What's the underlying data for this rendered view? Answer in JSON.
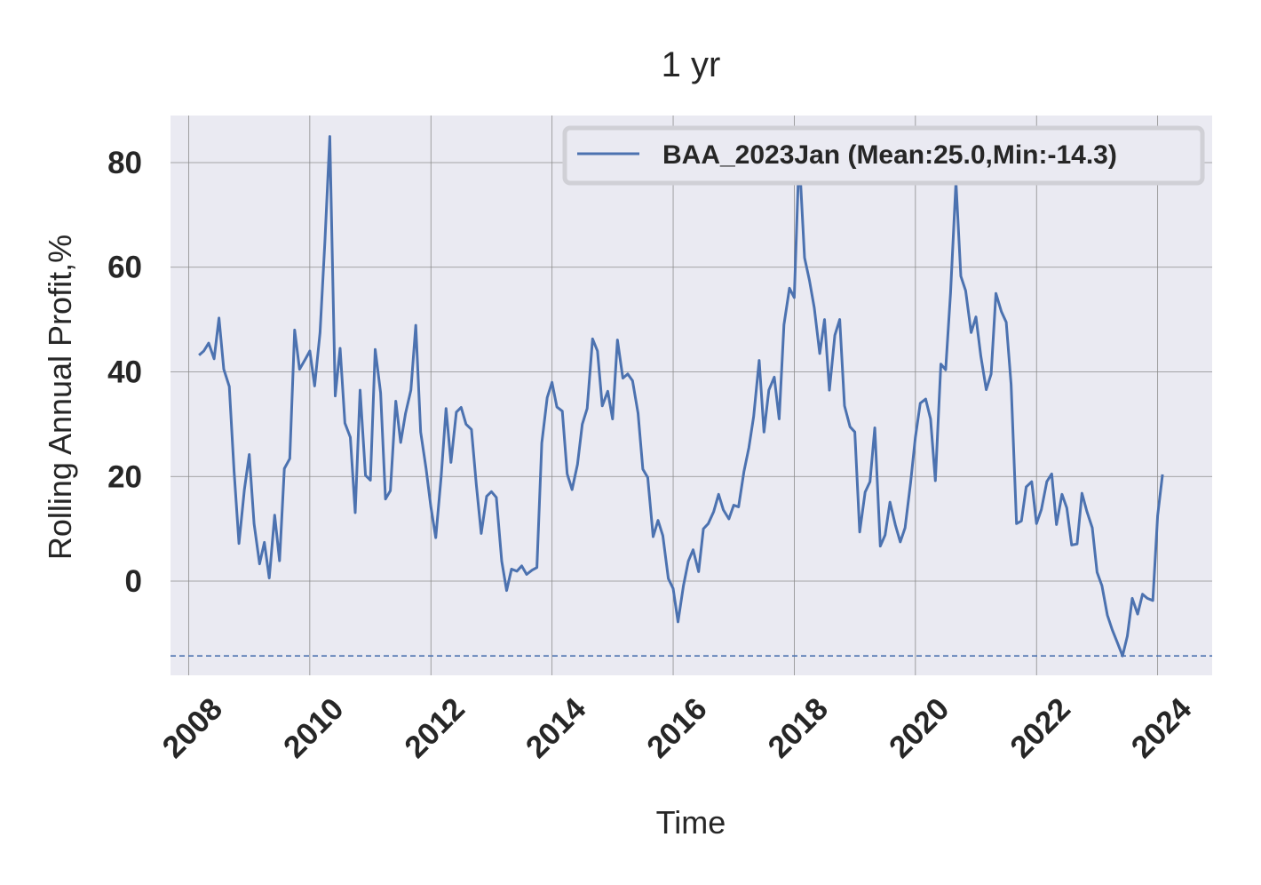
{
  "chart_data": {
    "type": "line",
    "title": "1 yr",
    "xlabel": "Time",
    "ylabel": "Rolling Annual Profit,%",
    "xlim": [
      2007.7,
      2024.9
    ],
    "ylim": [
      -18,
      89
    ],
    "x_ticks": [
      2008,
      2010,
      2012,
      2014,
      2016,
      2018,
      2020,
      2022,
      2024
    ],
    "y_ticks": [
      0,
      20,
      40,
      60,
      80
    ],
    "grid": true,
    "legend_position": "upper right",
    "colors": {
      "line": "#4c72b0",
      "plot_background": "#eaeaf2",
      "grid": "#8c8c8c",
      "text": "#262626"
    },
    "series": [
      {
        "name": "BAA_2023Jan (Mean:25.0,Min:-14.3)",
        "x": [
          2008.17,
          2008.25,
          2008.33,
          2008.42,
          2008.5,
          2008.58,
          2008.67,
          2008.75,
          2008.83,
          2008.92,
          2009.0,
          2009.08,
          2009.17,
          2009.25,
          2009.33,
          2009.42,
          2009.5,
          2009.58,
          2009.67,
          2009.75,
          2009.83,
          2009.92,
          2010.0,
          2010.08,
          2010.17,
          2010.25,
          2010.33,
          2010.42,
          2010.5,
          2010.58,
          2010.67,
          2010.75,
          2010.83,
          2010.92,
          2011.0,
          2011.08,
          2011.17,
          2011.25,
          2011.33,
          2011.42,
          2011.5,
          2011.58,
          2011.67,
          2011.75,
          2011.83,
          2011.92,
          2012.0,
          2012.08,
          2012.17,
          2012.25,
          2012.33,
          2012.42,
          2012.5,
          2012.58,
          2012.67,
          2012.75,
          2012.83,
          2012.92,
          2013.0,
          2013.08,
          2013.17,
          2013.25,
          2013.33,
          2013.42,
          2013.5,
          2013.58,
          2013.67,
          2013.75,
          2013.83,
          2013.92,
          2014.0,
          2014.08,
          2014.17,
          2014.25,
          2014.33,
          2014.42,
          2014.5,
          2014.58,
          2014.67,
          2014.75,
          2014.83,
          2014.92,
          2015.0,
          2015.08,
          2015.17,
          2015.25,
          2015.33,
          2015.42,
          2015.5,
          2015.58,
          2015.67,
          2015.75,
          2015.83,
          2015.92,
          2016.0,
          2016.08,
          2016.17,
          2016.25,
          2016.33,
          2016.42,
          2016.5,
          2016.58,
          2016.67,
          2016.75,
          2016.83,
          2016.92,
          2017.0,
          2017.08,
          2017.17,
          2017.25,
          2017.33,
          2017.42,
          2017.5,
          2017.58,
          2017.67,
          2017.75,
          2017.83,
          2017.92,
          2018.0,
          2018.08,
          2018.17,
          2018.25,
          2018.33,
          2018.42,
          2018.5,
          2018.58,
          2018.67,
          2018.75,
          2018.83,
          2018.92,
          2019.0,
          2019.08,
          2019.17,
          2019.25,
          2019.33,
          2019.42,
          2019.5,
          2019.58,
          2019.67,
          2019.75,
          2019.83,
          2019.92,
          2020.0,
          2020.08,
          2020.17,
          2020.25,
          2020.33,
          2020.42,
          2020.5,
          2020.58,
          2020.67,
          2020.75,
          2020.83,
          2020.92,
          2021.0,
          2021.08,
          2021.17,
          2021.25,
          2021.33,
          2021.42,
          2021.5,
          2021.58,
          2021.67,
          2021.75,
          2021.83,
          2021.92,
          2022.0,
          2022.08,
          2022.17,
          2022.25,
          2022.33,
          2022.42,
          2022.5,
          2022.58,
          2022.67,
          2022.75,
          2022.83,
          2022.92,
          2023.0,
          2023.08,
          2023.17,
          2023.25,
          2023.33,
          2023.42,
          2023.5,
          2023.58,
          2023.67,
          2023.75,
          2023.83,
          2023.92,
          2024.0,
          2024.08
        ],
        "y": [
          43.2,
          44.0,
          45.5,
          42.5,
          50.3,
          40.5,
          37.2,
          21.0,
          7.2,
          17.5,
          24.2,
          11.0,
          3.3,
          7.4,
          0.6,
          12.6,
          3.9,
          21.5,
          23.4,
          48.0,
          40.5,
          42.3,
          44.0,
          37.3,
          47.5,
          65.0,
          85.0,
          35.4,
          44.5,
          30.2,
          27.5,
          13.1,
          36.5,
          20.2,
          19.3,
          44.3,
          36.0,
          15.7,
          17.3,
          34.4,
          26.5,
          32.0,
          36.5,
          48.9,
          28.5,
          21.5,
          14.2,
          8.3,
          20.0,
          33.0,
          22.7,
          32.3,
          33.2,
          30.0,
          29.0,
          18.4,
          9.1,
          16.2,
          17.1,
          16.0,
          3.8,
          -1.8,
          2.3,
          1.9,
          2.9,
          1.3,
          2.1,
          2.6,
          26.4,
          35.1,
          38.0,
          33.3,
          32.5,
          20.5,
          17.5,
          22.3,
          30.0,
          33.0,
          46.3,
          44.0,
          33.5,
          36.3,
          31.0,
          46.1,
          38.8,
          39.6,
          38.3,
          32.1,
          21.4,
          19.8,
          8.5,
          11.6,
          8.7,
          0.5,
          -1.4,
          -7.8,
          -0.9,
          3.8,
          6.0,
          1.8,
          10.0,
          11.0,
          13.3,
          16.6,
          13.6,
          11.9,
          14.5,
          14.2,
          21.0,
          25.5,
          31.5,
          42.2,
          28.5,
          36.5,
          39.0,
          31.0,
          49.0,
          56.0,
          54.2,
          81.5,
          61.8,
          57.5,
          52.3,
          43.5,
          50.0,
          36.5,
          47.0,
          50.0,
          33.5,
          29.5,
          28.5,
          9.4,
          17.0,
          19.0,
          29.3,
          6.7,
          8.8,
          15.1,
          10.7,
          7.5,
          10.2,
          18.8,
          27.5,
          34.0,
          34.8,
          31.0,
          19.2,
          41.5,
          40.4,
          55.1,
          76.3,
          58.3,
          55.5,
          47.5,
          50.5,
          43.0,
          36.6,
          39.6,
          55.0,
          51.5,
          49.5,
          37.6,
          11.0,
          11.5,
          18.0,
          19.0,
          11.0,
          13.7,
          19.0,
          20.5,
          10.8,
          16.6,
          14.0,
          6.9,
          7.1,
          16.8,
          13.4,
          10.2,
          1.7,
          -0.9,
          -6.5,
          -9.3,
          -11.6,
          -14.3,
          -10.5,
          -3.3,
          -6.3,
          -2.5,
          -3.3,
          -3.7,
          12.5,
          20.4
        ]
      }
    ],
    "annotations": [
      {
        "type": "hline",
        "y": -14.3,
        "style": "dashed"
      }
    ]
  }
}
